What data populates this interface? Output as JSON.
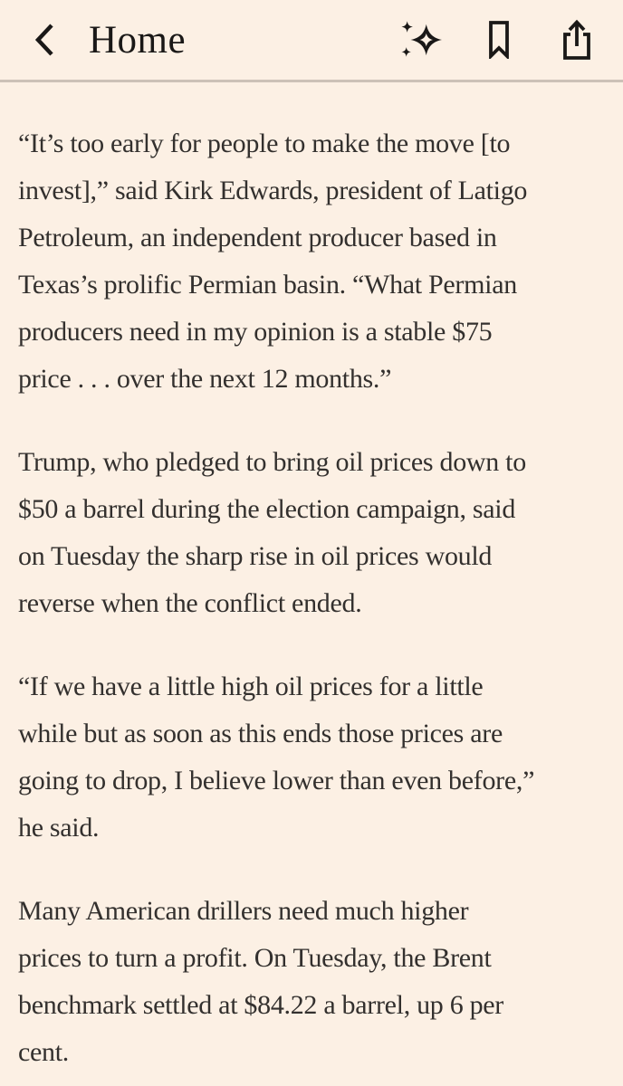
{
  "header": {
    "title": "Home",
    "back_button": {
      "icon": "chevron-left-icon",
      "label": "Back"
    },
    "actions": [
      {
        "name": "ai-summary",
        "icon": "sparkles-icon"
      },
      {
        "name": "bookmark",
        "icon": "bookmark-icon"
      },
      {
        "name": "share",
        "icon": "share-icon"
      }
    ]
  },
  "article": {
    "paragraphs": [
      {
        "lines": [
          "“It’s too early for people to make the move [to",
          "invest],” said Kirk Edwards, president of Latigo",
          "Petroleum, an independent producer based in",
          "Texas’s prolific Permian basin. “What Permian",
          "producers need in my opinion is a stable $75",
          "price . . . over the next 12 months.”"
        ]
      },
      {
        "lines": [
          "Trump, who pledged to bring oil prices down to",
          "$50 a barrel during the election campaign, said",
          "on Tuesday the sharp rise in oil prices would",
          "reverse when the conflict ended."
        ]
      },
      {
        "lines": [
          "“If we have a little high oil prices for a little",
          "while but as soon as this ends those prices are",
          "going to drop, I believe lower than even before,”",
          "he said."
        ]
      },
      {
        "lines": [
          "Many American drillers need much higher",
          "prices to turn a profit. On Tuesday, the Brent",
          "benchmark settled at $84.22 a barrel, up 6 per",
          "cent."
        ]
      }
    ]
  },
  "colors": {
    "background": "#FCF0E4",
    "body_text": "#33302E",
    "header_text": "#1A1817",
    "divider": "#CCC1B7"
  }
}
